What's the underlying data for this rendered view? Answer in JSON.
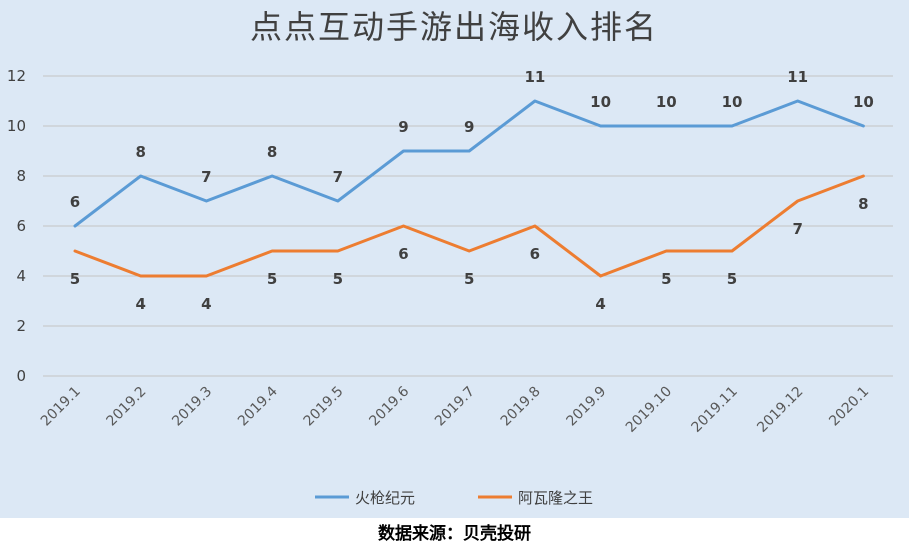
{
  "chart_data": {
    "type": "line",
    "title": "点点互动手游出海收入排名",
    "xlabel": "",
    "ylabel": "",
    "ylim": [
      0,
      12
    ],
    "yticks": [
      0,
      2,
      4,
      6,
      8,
      10,
      12
    ],
    "grid": true,
    "legend": "bottom-center",
    "categories": [
      "2019.1",
      "2019.2",
      "2019.3",
      "2019.4",
      "2019.5",
      "2019.6",
      "2019.7",
      "2019.8",
      "2019.9",
      "2019.10",
      "2019.11",
      "2019.12",
      "2020.1"
    ],
    "series": [
      {
        "name": "火枪纪元",
        "color": "#5b9bd5",
        "label_position": "above",
        "values": [
          6,
          8,
          7,
          8,
          7,
          9,
          9,
          11,
          10,
          10,
          10,
          11,
          10
        ]
      },
      {
        "name": "阿瓦隆之王",
        "color": "#ed7d31",
        "label_position": "below",
        "values": [
          5,
          4,
          4,
          5,
          5,
          6,
          5,
          6,
          4,
          5,
          5,
          7,
          8
        ]
      }
    ]
  },
  "footer": {
    "source": "数据来源：贝壳投研"
  }
}
